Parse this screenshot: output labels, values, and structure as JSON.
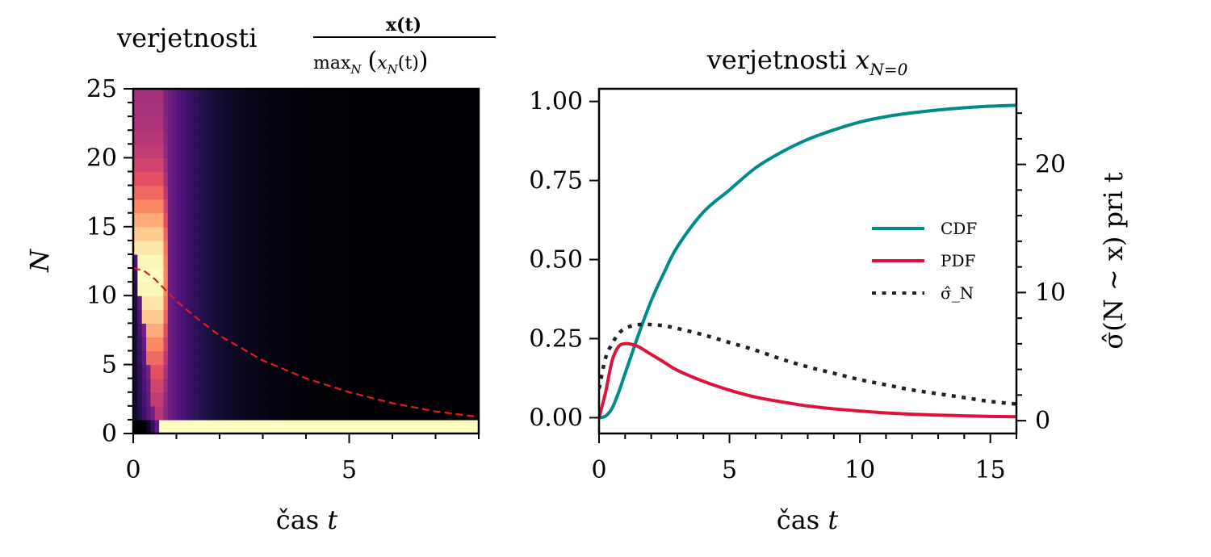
{
  "chart_data": [
    {
      "type": "heatmap",
      "title_prefix": "verjetnosti",
      "title_fraction_numerator": "x(t)",
      "title_fraction_denominator_op": "max",
      "title_fraction_denominator_sub": "N",
      "title_fraction_denominator_arg": "x",
      "title_fraction_denominator_arg_sub": "N",
      "title_fraction_denominator_arg_tail": "(t)",
      "xlabel_prefix": "čas",
      "xlabel_var": "t",
      "ylabel": "N",
      "xlim": [
        0,
        8
      ],
      "ylim": [
        0,
        25
      ],
      "xticks": [
        0,
        5
      ],
      "xtick_labels": [
        "0",
        "5"
      ],
      "yticks": [
        0,
        5,
        10,
        15,
        20,
        25
      ],
      "ytick_labels": [
        "0",
        "5",
        "10",
        "15",
        "20",
        "25"
      ],
      "colormap": "magma",
      "rows_N": 25,
      "description": "normalized probability x_N(t)/max_N x_N(t); bright band near t 0.1-0.8, N=0 row bright after t 0.65",
      "overlay_line": {
        "name": "mean N",
        "style": "dashed",
        "color": "#e41a1c",
        "t": [
          0,
          0.25,
          0.5,
          1,
          1.5,
          2,
          2.5,
          3,
          4,
          5,
          6,
          7,
          8
        ],
        "N": [
          12,
          11.8,
          11.2,
          9.6,
          8.3,
          7.1,
          6.2,
          5.3,
          4.0,
          3.0,
          2.2,
          1.6,
          1.2
        ]
      }
    },
    {
      "type": "line",
      "title_prefix": "verjetnosti",
      "title_var": "x",
      "title_sub": "N=0",
      "xlabel_prefix": "čas",
      "xlabel_var": "t",
      "ylabel_right": "σ̂(N ∼ x) pri t",
      "xlim": [
        0,
        16
      ],
      "ylim": [
        -0.05,
        1.04
      ],
      "ylim_right": [
        -1,
        25.9
      ],
      "xticks": [
        0,
        5,
        10,
        15
      ],
      "xtick_labels": [
        "0",
        "5",
        "10",
        "15"
      ],
      "yticks": [
        0,
        0.25,
        0.5,
        0.75,
        1.0
      ],
      "ytick_labels": [
        "0.00",
        "0.25",
        "0.50",
        "0.75",
        "1.00"
      ],
      "yticks_right": [
        0,
        10,
        20
      ],
      "ytick_labels_right": [
        "0",
        "10",
        "20"
      ],
      "legend_position": "center-right",
      "x": [
        0,
        0.25,
        0.5,
        0.75,
        1,
        1.25,
        1.5,
        2,
        2.5,
        3,
        4,
        5,
        6,
        7,
        8,
        9,
        10,
        11,
        12,
        13,
        14,
        15,
        16
      ],
      "series": [
        {
          "name": "CDF",
          "axis": "left",
          "style": "solid",
          "color": "#008b8b",
          "values": [
            0,
            0.005,
            0.03,
            0.08,
            0.14,
            0.2,
            0.26,
            0.37,
            0.46,
            0.54,
            0.65,
            0.72,
            0.79,
            0.84,
            0.88,
            0.91,
            0.935,
            0.952,
            0.964,
            0.973,
            0.98,
            0.985,
            0.988
          ]
        },
        {
          "name": "PDF",
          "axis": "left",
          "style": "solid",
          "color": "#dc143c",
          "values": [
            0,
            0.08,
            0.18,
            0.225,
            0.234,
            0.232,
            0.225,
            0.2,
            0.175,
            0.15,
            0.115,
            0.087,
            0.065,
            0.05,
            0.037,
            0.028,
            0.021,
            0.015,
            0.011,
            0.008,
            0.006,
            0.004,
            0.003
          ]
        },
        {
          "name": "σ̂_N",
          "axis": "right",
          "style": "dotted",
          "color": "#222222",
          "values": [
            2.5,
            4.9,
            6.0,
            6.8,
            7.2,
            7.4,
            7.5,
            7.5,
            7.4,
            7.2,
            6.7,
            6.1,
            5.5,
            4.8,
            4.2,
            3.7,
            3.2,
            2.8,
            2.4,
            2.1,
            1.8,
            1.5,
            1.3
          ]
        }
      ],
      "legend": [
        "CDF",
        "PDF",
        "σ̂_N"
      ]
    }
  ]
}
